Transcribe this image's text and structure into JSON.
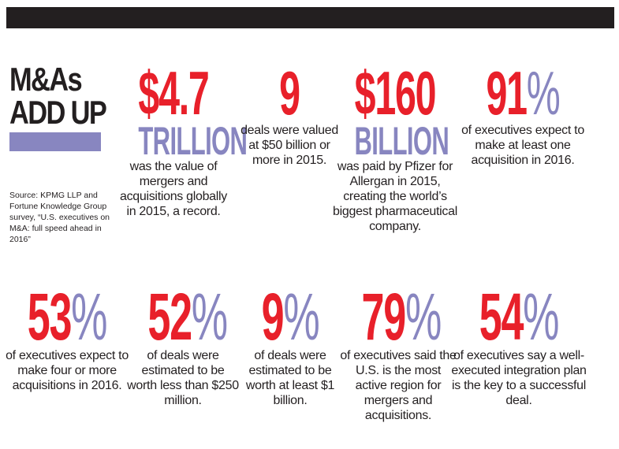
{
  "title": {
    "line1": "M&As",
    "line2": "ADD UP"
  },
  "source": "Source: KPMG LLP and Fortune Knowledge Group survey, “U.S. executives on M&A: full speed ahead in 2016”",
  "colors": {
    "red": "#e8202a",
    "purple": "#8886c0",
    "dark": "#231f20"
  },
  "stats": [
    {
      "figure": "$4.7",
      "unit": "TRILLION",
      "text": "was the value of mergers and acquisitions globally in 2015, a record."
    },
    {
      "figure": "9",
      "unit": "",
      "text": "deals were valued at $50 billion or more in 2015."
    },
    {
      "figure": "$160",
      "unit": "BILLION",
      "text": "was paid by Pfizer for Allergan in 2015, creating the world’s biggest pharmaceutical company."
    },
    {
      "figure": "91",
      "pct": "%",
      "text": "of executives expect to make at least one acquisition in 2016."
    },
    {
      "figure": "53",
      "pct": "%",
      "text": "of executives expect to make four or more acquisitions in 2016."
    },
    {
      "figure": "52",
      "pct": "%",
      "text": "of deals were estimated to be worth less than $250 million."
    },
    {
      "figure": "9",
      "pct": "%",
      "text": "of deals were estimated to be worth at least $1 billion."
    },
    {
      "figure": "79",
      "pct": "%",
      "text": "of executives said the U.S. is the most active region for mergers and acquisitions."
    },
    {
      "figure": "54",
      "pct": "%",
      "text": "of executives say a well-executed integration plan is the key to a successful deal."
    }
  ]
}
